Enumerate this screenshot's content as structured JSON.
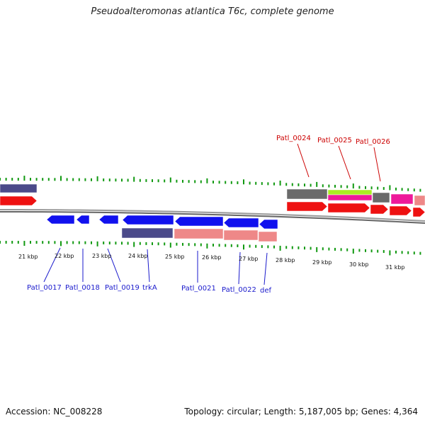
{
  "title": "Pseudoalteromonas atlantica T6c, complete genome",
  "footer": {
    "accession": "Accession: NC_008228",
    "summary": "Topology: circular; Length: 5,187,005 bp; Genes: 4,364"
  },
  "kbp_labels": [
    "21 kbp",
    "22 kbp",
    "23 kbp",
    "24 kbp",
    "25 kbp",
    "26 kbp",
    "27 kbp",
    "28 kbp",
    "29 kbp",
    "30 kbp",
    "31 kbp"
  ],
  "gene_labels_top": [
    "Patl_0024",
    "Patl_0025",
    "Patl_0026"
  ],
  "gene_labels_bottom": [
    "Patl_0017",
    "Patl_0018",
    "Patl_0019",
    "trkA",
    "Patl_0021",
    "Patl_0022",
    "def"
  ],
  "colors": {
    "tick": "#119911",
    "backbone": "#888888",
    "forward_cds": "#ee1111",
    "reverse_cds": "#1111ee",
    "cog_purple": "#4b4a8a",
    "cog_pink": "#ee8888",
    "cog_gray": "#6a6a6a",
    "cog_lime": "#aaee22",
    "cog_magenta": "#ee1a9a",
    "label_top": "#cc0000",
    "label_bottom": "#1a1acc"
  }
}
